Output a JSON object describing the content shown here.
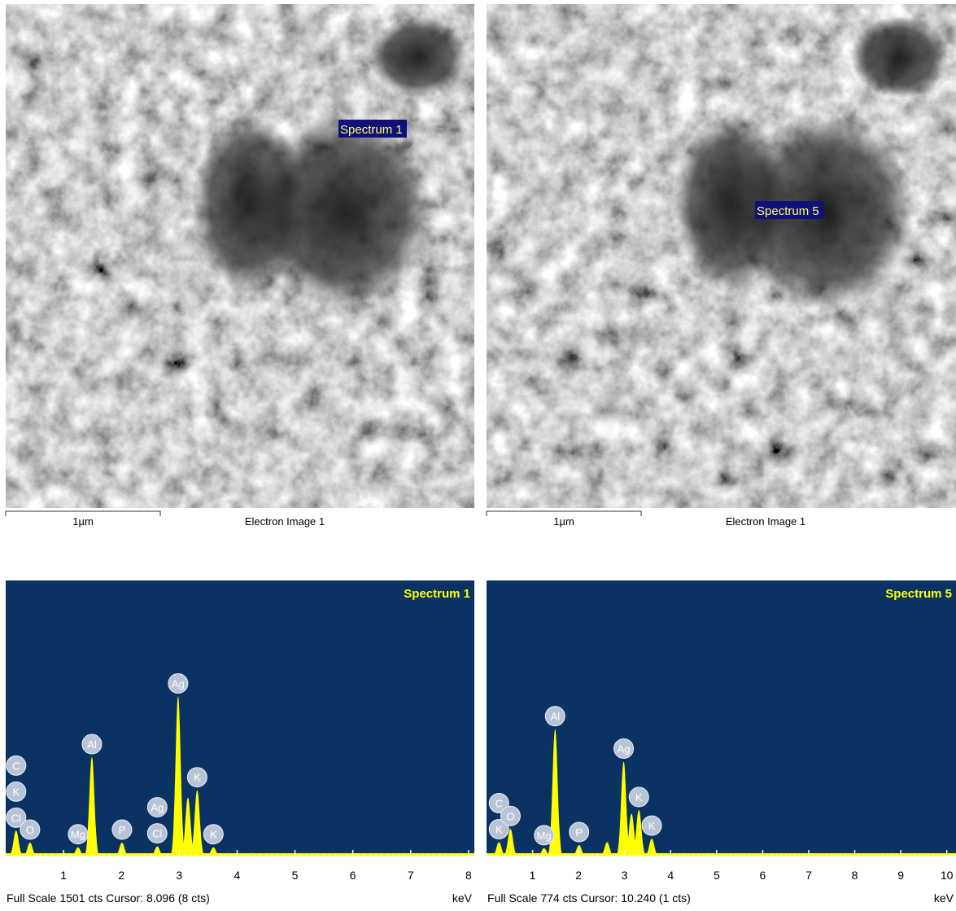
{
  "images": [
    {
      "spectrum_label": "Spectrum 1",
      "scale_label": "1µm",
      "caption": "Electron Image 1"
    },
    {
      "spectrum_label": "Spectrum 5",
      "scale_label": "1µm",
      "caption": "Electron Image 1"
    }
  ],
  "chart_data": [
    {
      "type": "spectrum",
      "title": "Spectrum 1",
      "x_label": "keV",
      "footer": "Full Scale 1501 cts Cursor: 8.096  (8 cts)",
      "color": "#ffff00",
      "background": "#0a3263",
      "ylim": [
        0,
        1501
      ],
      "xlim": [
        0,
        8.1
      ],
      "xticks": [
        1,
        2,
        3,
        4,
        5,
        6,
        7,
        8
      ],
      "peaks": {
        "x": [
          0.18,
          0.42,
          1.25,
          1.49,
          2.01,
          2.62,
          2.98,
          3.15,
          3.31,
          3.59
        ],
        "values": [
          140,
          75,
          50,
          540,
          75,
          55,
          870,
          320,
          360,
          50
        ]
      },
      "element_labels": {
        "names": [
          "Cl",
          "K",
          "C",
          "O",
          "Mg",
          "Al",
          "P",
          "Cl",
          "Ag",
          "Ag",
          "K",
          "K"
        ],
        "x": [
          0.18,
          0.18,
          0.18,
          0.42,
          1.25,
          1.49,
          2.01,
          2.62,
          2.62,
          2.98,
          3.31,
          3.59
        ]
      }
    },
    {
      "type": "spectrum",
      "title": "Spectrum 5",
      "x_label": "keV",
      "footer": "Full Scale 774 cts Cursor: 10.240  (1 cts)",
      "color": "#ffff00",
      "background": "#0a3263",
      "ylim": [
        0,
        774
      ],
      "xlim": [
        0,
        10.2
      ],
      "xticks": [
        1,
        2,
        3,
        4,
        5,
        6,
        7,
        8,
        9,
        10
      ],
      "peaks": {
        "x": [
          0.27,
          0.52,
          1.25,
          1.49,
          2.01,
          2.62,
          2.98,
          3.15,
          3.31,
          3.59
        ],
        "values": [
          40,
          77,
          23,
          357,
          32,
          40,
          266,
          120,
          130,
          50
        ]
      },
      "element_labels": {
        "names": [
          "K",
          "C",
          "O",
          "Mg",
          "Al",
          "P",
          "Ag",
          "K",
          "K"
        ],
        "x": [
          0.27,
          0.27,
          0.52,
          1.25,
          1.49,
          2.01,
          2.98,
          3.31,
          3.59
        ]
      }
    }
  ]
}
